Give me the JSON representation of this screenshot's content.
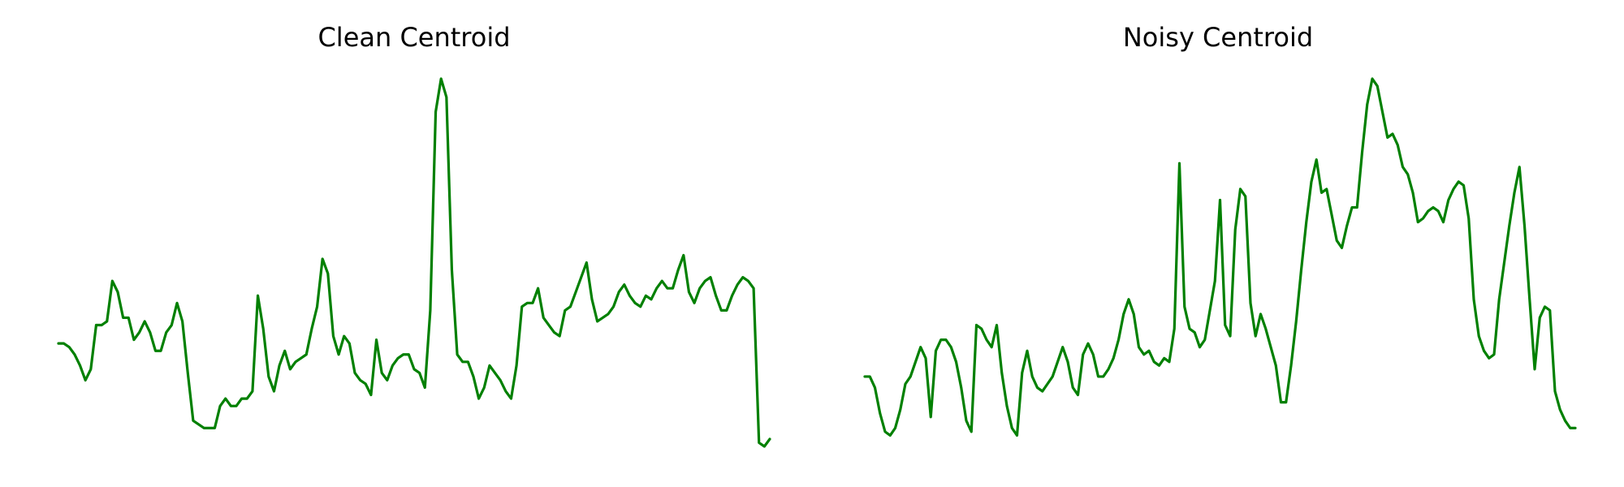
{
  "line_color": "#008000",
  "chart_data": [
    {
      "type": "line",
      "title": "Clean Centroid",
      "xlabel": "",
      "ylabel": "",
      "axes": "off",
      "grid": false,
      "ylim": [
        0,
        1
      ],
      "values": [
        0.28,
        0.28,
        0.27,
        0.25,
        0.22,
        0.18,
        0.21,
        0.33,
        0.33,
        0.34,
        0.45,
        0.42,
        0.35,
        0.35,
        0.29,
        0.31,
        0.34,
        0.31,
        0.26,
        0.26,
        0.31,
        0.33,
        0.39,
        0.34,
        0.2,
        0.07,
        0.06,
        0.05,
        0.05,
        0.05,
        0.11,
        0.13,
        0.11,
        0.11,
        0.13,
        0.13,
        0.15,
        0.41,
        0.32,
        0.19,
        0.15,
        0.22,
        0.26,
        0.21,
        0.23,
        0.24,
        0.25,
        0.32,
        0.38,
        0.51,
        0.47,
        0.3,
        0.25,
        0.3,
        0.28,
        0.2,
        0.18,
        0.17,
        0.14,
        0.29,
        0.2,
        0.18,
        0.22,
        0.24,
        0.25,
        0.25,
        0.21,
        0.2,
        0.16,
        0.37,
        0.91,
        1.0,
        0.95,
        0.48,
        0.25,
        0.23,
        0.23,
        0.19,
        0.13,
        0.16,
        0.22,
        0.2,
        0.18,
        0.15,
        0.13,
        0.22,
        0.38,
        0.39,
        0.39,
        0.43,
        0.35,
        0.33,
        0.31,
        0.3,
        0.37,
        0.38,
        0.42,
        0.46,
        0.5,
        0.4,
        0.34,
        0.35,
        0.36,
        0.38,
        0.42,
        0.44,
        0.41,
        0.39,
        0.38,
        0.41,
        0.4,
        0.43,
        0.45,
        0.43,
        0.43,
        0.48,
        0.52,
        0.42,
        0.39,
        0.43,
        0.45,
        0.46,
        0.41,
        0.37,
        0.37,
        0.41,
        0.44,
        0.46,
        0.45,
        0.43,
        0.01,
        0.0,
        0.02
      ]
    },
    {
      "type": "line",
      "title": "Noisy Centroid",
      "xlabel": "",
      "ylabel": "",
      "axes": "off",
      "grid": false,
      "ylim": [
        0,
        1
      ],
      "values": [
        0.19,
        0.19,
        0.16,
        0.09,
        0.04,
        0.03,
        0.05,
        0.1,
        0.17,
        0.19,
        0.23,
        0.27,
        0.24,
        0.08,
        0.26,
        0.29,
        0.29,
        0.27,
        0.23,
        0.16,
        0.07,
        0.04,
        0.33,
        0.32,
        0.29,
        0.27,
        0.33,
        0.2,
        0.11,
        0.05,
        0.03,
        0.2,
        0.26,
        0.19,
        0.16,
        0.15,
        0.17,
        0.19,
        0.23,
        0.27,
        0.23,
        0.16,
        0.14,
        0.25,
        0.28,
        0.25,
        0.19,
        0.19,
        0.21,
        0.24,
        0.29,
        0.36,
        0.4,
        0.36,
        0.27,
        0.25,
        0.26,
        0.23,
        0.22,
        0.24,
        0.23,
        0.32,
        0.77,
        0.38,
        0.32,
        0.31,
        0.27,
        0.29,
        0.37,
        0.45,
        0.67,
        0.33,
        0.3,
        0.59,
        0.7,
        0.68,
        0.39,
        0.3,
        0.36,
        0.32,
        0.27,
        0.22,
        0.12,
        0.12,
        0.22,
        0.34,
        0.48,
        0.61,
        0.72,
        0.78,
        0.69,
        0.7,
        0.63,
        0.56,
        0.54,
        0.6,
        0.65,
        0.65,
        0.8,
        0.93,
        1.0,
        0.98,
        0.91,
        0.84,
        0.85,
        0.82,
        0.76,
        0.74,
        0.69,
        0.61,
        0.62,
        0.64,
        0.65,
        0.64,
        0.61,
        0.67,
        0.7,
        0.72,
        0.71,
        0.62,
        0.4,
        0.3,
        0.26,
        0.24,
        0.25,
        0.4,
        0.5,
        0.6,
        0.69,
        0.76,
        0.6,
        0.4,
        0.21,
        0.35,
        0.38,
        0.37,
        0.15,
        0.1,
        0.07,
        0.05,
        0.05
      ]
    }
  ]
}
